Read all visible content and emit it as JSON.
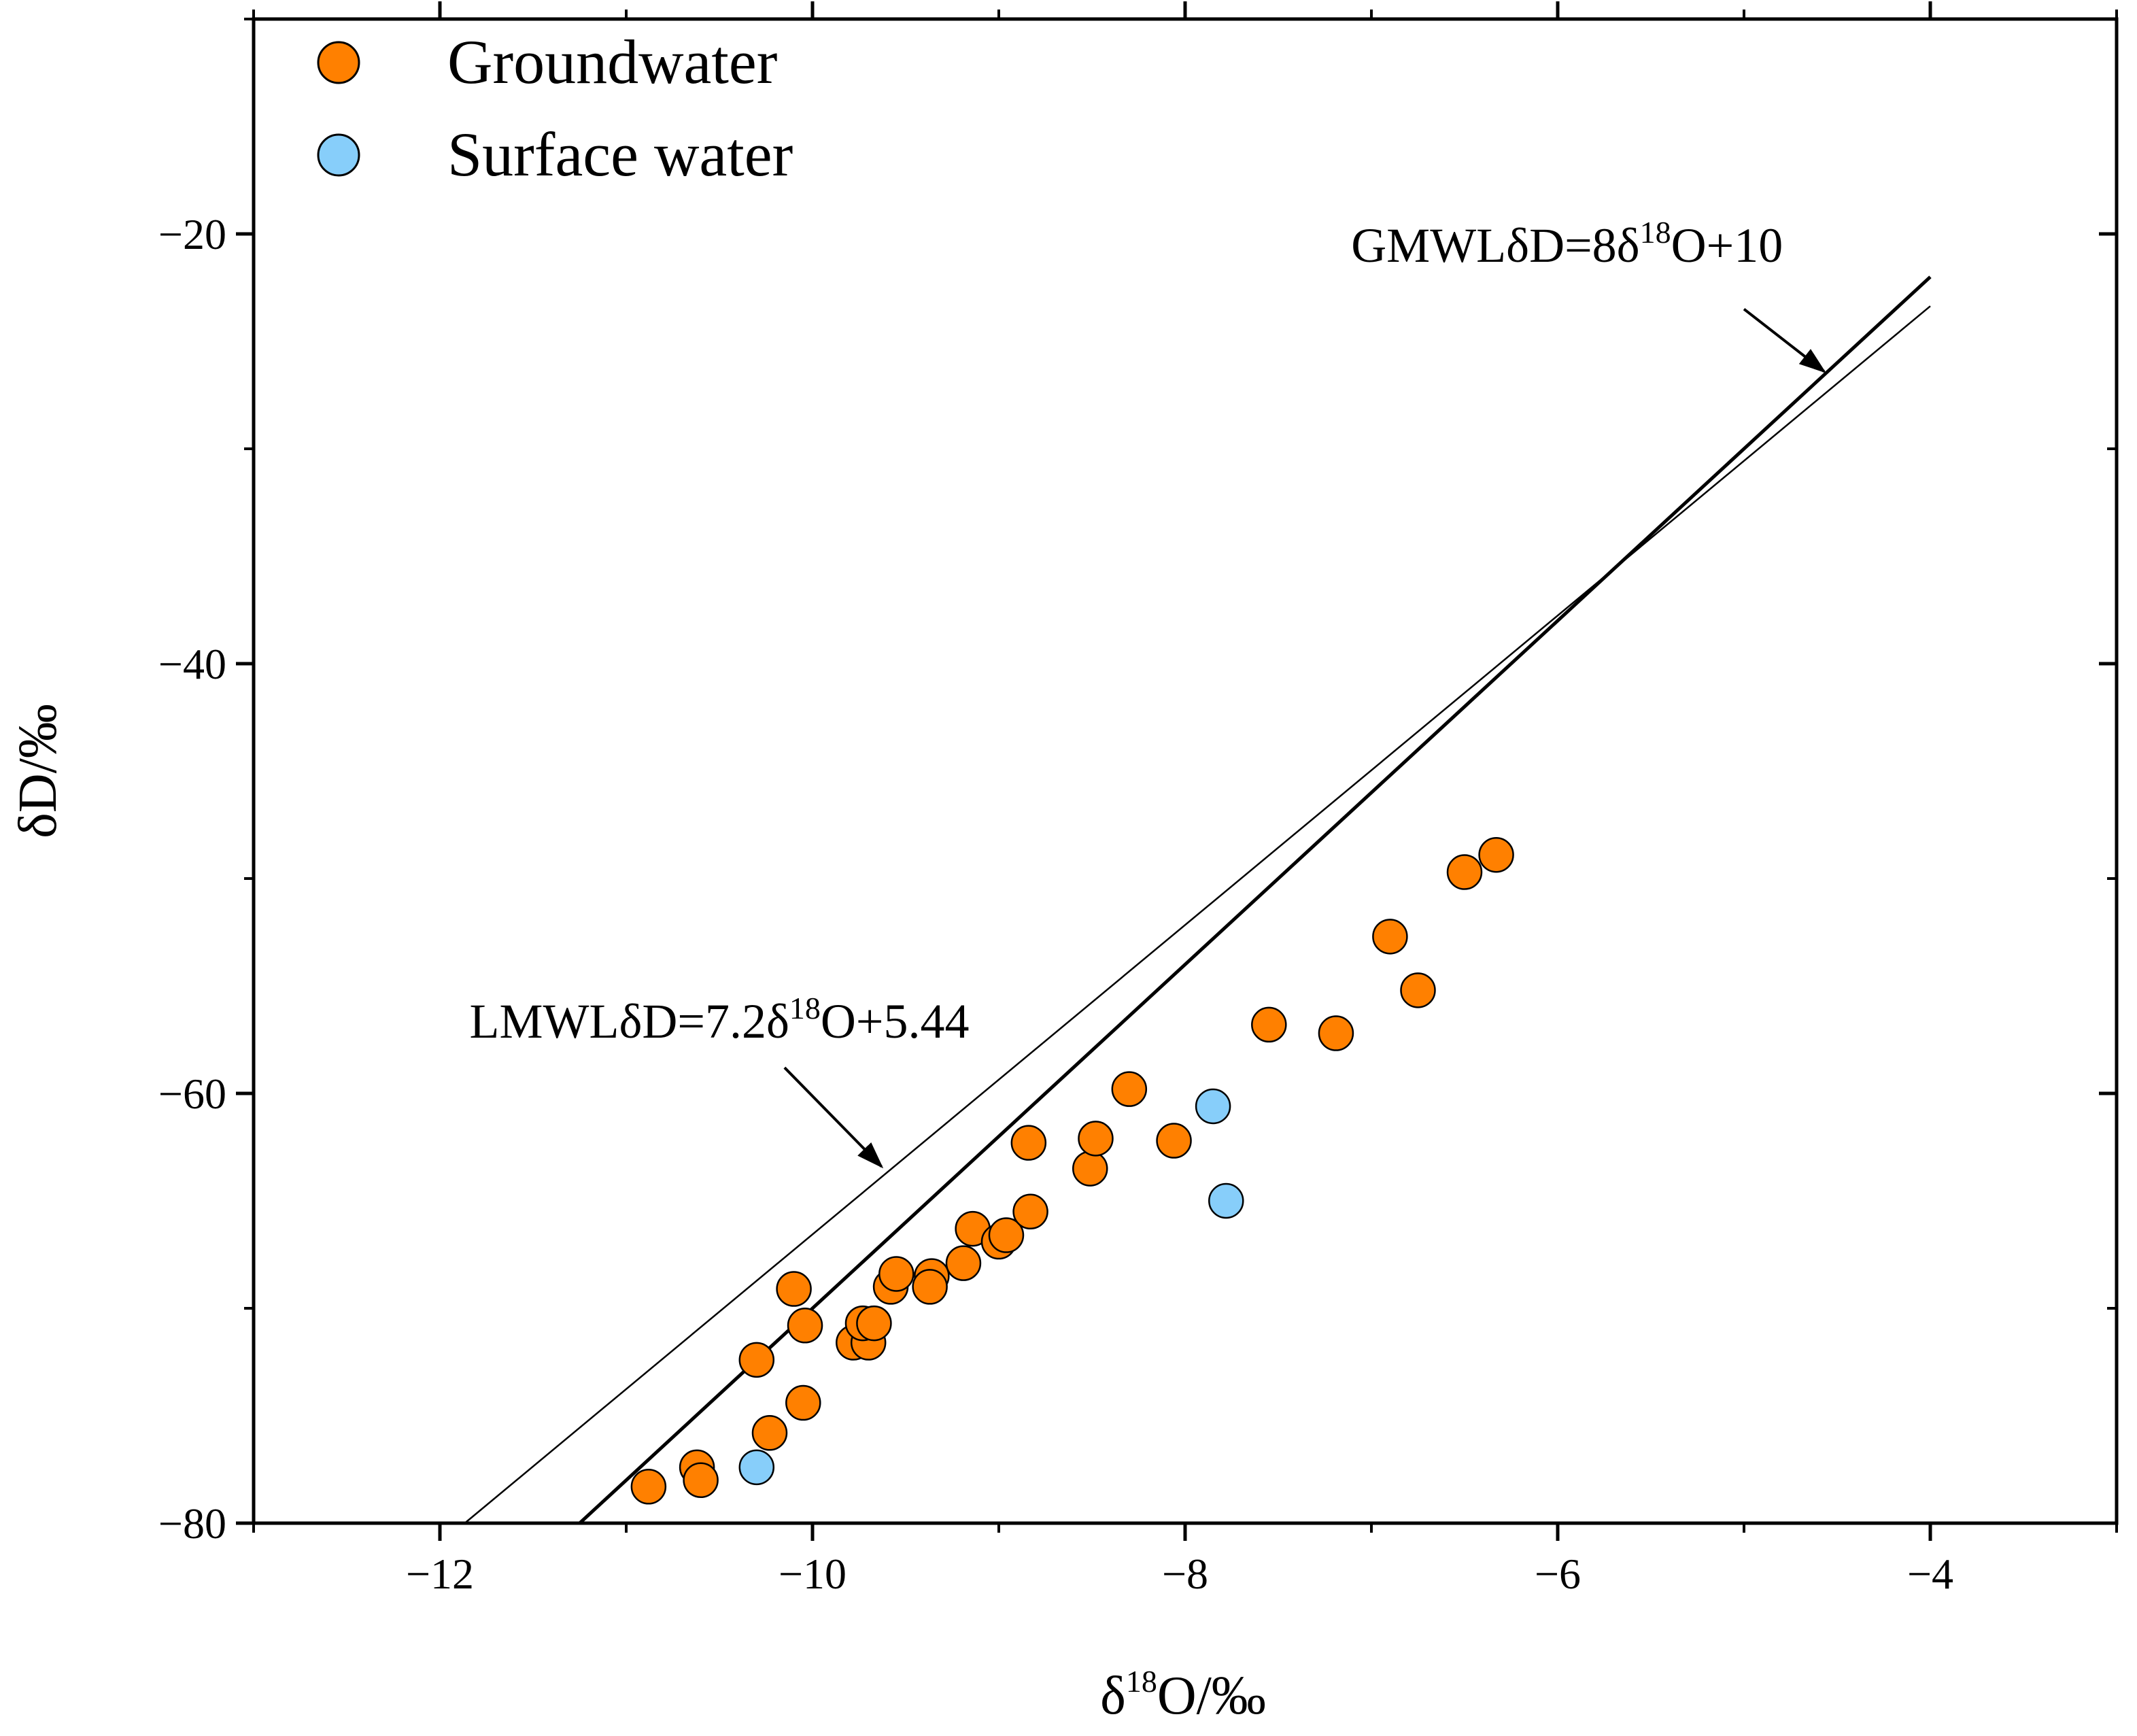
{
  "chart_data": {
    "type": "scatter",
    "title": "",
    "xlabel": {
      "prefix": "δ",
      "sup": "18",
      "suffix": "O/‰"
    },
    "ylabel": "δD/‰",
    "xlim": [
      -13,
      -3
    ],
    "ylim": [
      -80,
      -10
    ],
    "x_ticks": [
      -12,
      -10,
      -8,
      -6,
      -4
    ],
    "x_tick_labels": [
      "−12",
      "−10",
      "−8",
      "−6",
      "−4"
    ],
    "y_ticks": [
      -80,
      -60,
      -40,
      -20
    ],
    "y_tick_labels": [
      "−80",
      "−60",
      "−40",
      "−20"
    ],
    "legend": {
      "position": "top-left",
      "entries": [
        {
          "name": "Groundwater",
          "color": "#ff8000"
        },
        {
          "name": "Surface water",
          "color": "#87cefa"
        }
      ]
    },
    "series": [
      {
        "name": "Groundwater",
        "color": "#ff8000",
        "points": [
          [
            -10.88,
            -78.3
          ],
          [
            -10.62,
            -77.4
          ],
          [
            -10.6,
            -78.0
          ],
          [
            -10.23,
            -75.8
          ],
          [
            -10.05,
            -74.4
          ],
          [
            -10.3,
            -72.4
          ],
          [
            -10.04,
            -70.8
          ],
          [
            -10.1,
            -69.1
          ],
          [
            -9.78,
            -71.6
          ],
          [
            -9.7,
            -71.6
          ],
          [
            -9.73,
            -70.7
          ],
          [
            -9.67,
            -70.7
          ],
          [
            -9.58,
            -69.0
          ],
          [
            -9.55,
            -68.4
          ],
          [
            -9.36,
            -68.5
          ],
          [
            -9.37,
            -69.0
          ],
          [
            -9.19,
            -67.9
          ],
          [
            -9.14,
            -66.3
          ],
          [
            -9.0,
            -66.9
          ],
          [
            -8.96,
            -66.6
          ],
          [
            -8.83,
            -65.5
          ],
          [
            -8.84,
            -62.3
          ],
          [
            -8.51,
            -63.5
          ],
          [
            -8.48,
            -62.1
          ],
          [
            -8.3,
            -59.8
          ],
          [
            -8.06,
            -62.2
          ],
          [
            -7.55,
            -56.8
          ],
          [
            -7.19,
            -57.2
          ],
          [
            -6.9,
            -52.7
          ],
          [
            -6.75,
            -55.2
          ],
          [
            -6.5,
            -49.7
          ],
          [
            -6.33,
            -48.9
          ]
        ]
      },
      {
        "name": "Surface water",
        "color": "#87cefa",
        "points": [
          [
            -10.3,
            -77.4
          ],
          [
            -7.85,
            -60.6
          ],
          [
            -7.78,
            -65.0
          ]
        ]
      }
    ],
    "lines": [
      {
        "name": "GMWL",
        "slope": 8,
        "intercept": 10,
        "x_range": [
          -11.25,
          -4.0
        ],
        "weight": "thick"
      },
      {
        "name": "LMWL",
        "slope": 7.2,
        "intercept": 5.44,
        "x_range": [
          -11.86,
          -4.0
        ],
        "weight": "thin"
      }
    ],
    "annotations": [
      {
        "target": "GMWL",
        "label_main": "GMWLδD=8δ",
        "label_sup": "18",
        "label_tail": "O+10",
        "anchor": [
          -5.95,
          -21.3
        ],
        "arrow_from": [
          -5.0,
          -23.5
        ],
        "arrow_to": [
          -4.57,
          -26.4
        ]
      },
      {
        "target": "LMWL",
        "label_main": "LMWLδD=7.2δ",
        "label_sup": "18",
        "label_tail": "O+5.44",
        "anchor": [
          -10.5,
          -57.4
        ],
        "arrow_from": [
          -10.15,
          -58.8
        ],
        "arrow_to": [
          -9.63,
          -63.4
        ]
      }
    ]
  }
}
